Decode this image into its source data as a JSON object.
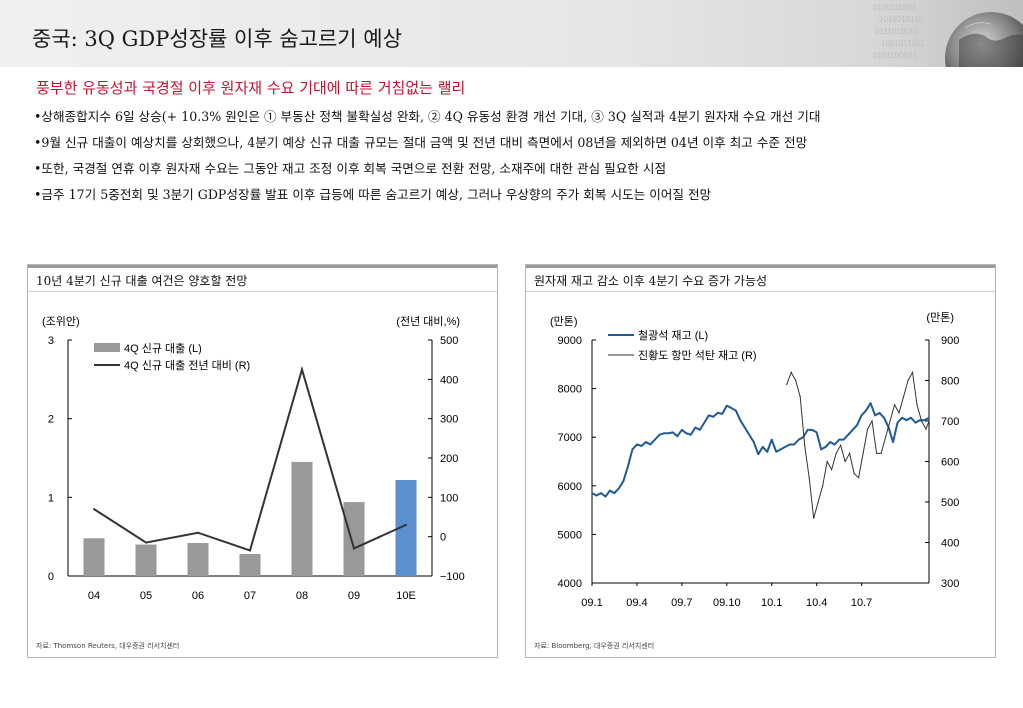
{
  "header": {
    "title": "중국: 3Q GDP성장률 이후 숨고르기 예상"
  },
  "headline": "풍부한 유동성과 국경절 이후 원자재 수요 기대에 따른 거침없는 랠리",
  "bullets": [
    "•상해종합지수 6일 상승(+ 10.3% 원인은 ① 부동산 정책 불확실성 완화, ② 4Q 유동성 환경 개선 기대, ③ 3Q 실적과 4분기 원자재 수요 개선 기대",
    "•9월 신규 대출이 예상치를 상회했으나, 4분기 예상 신규 대출 규모는 절대 금액 및 전년 대비 측면에서 08년을 제외하면 04년 이후 최고 수준 전망",
    "•또한, 국경절 연휴 이후 원자재 수요는 그동안 재고 조정 이후 회복 국면으로 전환 전망, 소재주에 대한 관심 필요한 시점",
    "•금주 17기 5중전회 및 3분기 GDP성장률 발표 이후 급등에 따른 숨고르기 예상, 그러나 우상향의 주가 회복 시도는 이어질 전망"
  ],
  "colors": {
    "accent_red": "#c8102e",
    "bar_gray": "#999999",
    "bar_highlight": "#5b8fd0",
    "line_dark": "#333333",
    "line_blue": "#1f5a96"
  },
  "panels": [
    {
      "title": "10년 4분기 신규 대출 여건은 양호할 전망",
      "source": "자료: Thomson Reuters, 대우증권 리서치센터"
    },
    {
      "title": "원자재 재고 감소 이후 4분기 수요 증가 가능성",
      "source": "자료: Bloomberg, 대우증권 리서치센터"
    }
  ],
  "chart_data": [
    {
      "type": "bar",
      "title": "10년 4분기 신규 대출 여건은 양호할 전망",
      "categories": [
        "04",
        "05",
        "06",
        "07",
        "08",
        "09",
        "10E"
      ],
      "left_axis": {
        "label": "(조위안)",
        "ylim": [
          0,
          3
        ],
        "ticks": [
          0,
          1,
          2,
          3
        ]
      },
      "right_axis": {
        "label": "(전년 대비,%)",
        "ylim": [
          -100,
          500
        ],
        "ticks": [
          -100,
          0,
          100,
          200,
          300,
          400,
          500
        ]
      },
      "series": [
        {
          "name": "4Q 신규 대출 (L)",
          "type": "bar",
          "axis": "left",
          "values": [
            0.48,
            0.4,
            0.42,
            0.28,
            1.45,
            0.94,
            1.22
          ]
        },
        {
          "name": "4Q 신규 대출 전년 대비 (R)",
          "type": "line",
          "axis": "right",
          "values": [
            70,
            -15,
            10,
            -35,
            425,
            -30,
            30
          ]
        }
      ],
      "highlight_index": 6,
      "legend": "top-left",
      "grid": false
    },
    {
      "type": "line",
      "title": "원자재 재고 감소 이후 4분기 수요 증가 가능성",
      "x_ticks": [
        "09.1",
        "09.4",
        "09.7",
        "09.10",
        "10.1",
        "10.4",
        "10.7"
      ],
      "x_range": [
        0,
        22.5
      ],
      "left_axis": {
        "label": "(만톤)",
        "ylim": [
          4000,
          9000
        ],
        "ticks": [
          4000,
          5000,
          6000,
          7000,
          8000,
          9000
        ]
      },
      "right_axis": {
        "label": "(만톤)",
        "ylim": [
          300,
          900
        ],
        "ticks": [
          300,
          400,
          500,
          600,
          700,
          800,
          900
        ]
      },
      "series": [
        {
          "name": "철광석 재고 (L)",
          "axis": "left",
          "style": "thick",
          "x": [
            0,
            0.3,
            0.6,
            0.9,
            1.2,
            1.5,
            1.8,
            2.1,
            2.4,
            2.7,
            3.0,
            3.3,
            3.6,
            3.9,
            4.2,
            4.5,
            4.8,
            5.1,
            5.4,
            5.7,
            6.0,
            6.3,
            6.6,
            6.9,
            7.2,
            7.5,
            7.8,
            8.1,
            8.4,
            8.7,
            9.0,
            9.3,
            9.6,
            9.9,
            10.2,
            10.5,
            10.8,
            11.1,
            11.4,
            11.7,
            12.0,
            12.3,
            12.6,
            12.9,
            13.2,
            13.5,
            13.8,
            14.1,
            14.4,
            14.7,
            15.0,
            15.3,
            15.6,
            15.9,
            16.2,
            16.5,
            16.8,
            17.1,
            17.4,
            17.7,
            18.0,
            18.3,
            18.6,
            18.9,
            19.2,
            19.5,
            19.8,
            20.1,
            20.4,
            20.7,
            21.0,
            21.3,
            21.6,
            21.9,
            22.2,
            22.5
          ],
          "y": [
            5850,
            5800,
            5850,
            5780,
            5900,
            5850,
            5950,
            6100,
            6400,
            6750,
            6850,
            6820,
            6900,
            6850,
            6950,
            7050,
            7080,
            7080,
            7100,
            7020,
            7150,
            7080,
            7050,
            7200,
            7150,
            7300,
            7450,
            7420,
            7500,
            7480,
            7650,
            7600,
            7550,
            7350,
            7200,
            7050,
            6900,
            6650,
            6800,
            6700,
            6950,
            6700,
            6750,
            6800,
            6850,
            6850,
            6950,
            7000,
            7150,
            7150,
            7100,
            6750,
            6800,
            6900,
            6850,
            6950,
            6950,
            7050,
            7150,
            7250,
            7450,
            7550,
            7700,
            7450,
            7500,
            7400,
            7200,
            6900,
            7300,
            7400,
            7350,
            7400,
            7300,
            7350,
            7350,
            7400
          ]
        },
        {
          "name": "진황도 항만 석탄 재고 (R)",
          "axis": "right",
          "style": "thin",
          "x": [
            13.0,
            13.3,
            13.6,
            13.9,
            14.2,
            14.5,
            14.8,
            15.1,
            15.4,
            15.7,
            16.0,
            16.3,
            16.6,
            16.9,
            17.2,
            17.5,
            17.8,
            18.1,
            18.4,
            18.7,
            19.0,
            19.3,
            19.6,
            19.9,
            20.2,
            20.5,
            20.8,
            21.1,
            21.4,
            21.7,
            22.0,
            22.3,
            22.5
          ],
          "y": [
            790,
            820,
            800,
            760,
            640,
            560,
            460,
            500,
            540,
            600,
            580,
            620,
            640,
            600,
            620,
            570,
            560,
            620,
            680,
            700,
            620,
            620,
            660,
            700,
            740,
            720,
            760,
            800,
            820,
            740,
            700,
            680,
            700
          ]
        }
      ],
      "legend": "top-left",
      "grid": false
    }
  ]
}
